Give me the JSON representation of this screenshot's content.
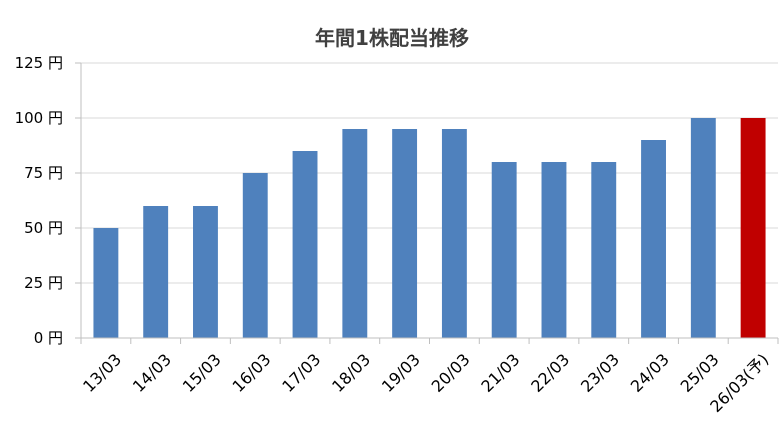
{
  "chart_data": {
    "type": "bar",
    "title": "年間1株配当推移",
    "xlabel": "",
    "ylabel": "",
    "categories": [
      "13/03",
      "14/03",
      "15/03",
      "16/03",
      "17/03",
      "18/03",
      "19/03",
      "20/03",
      "21/03",
      "22/03",
      "23/03",
      "24/03",
      "25/03",
      "26/03(予)"
    ],
    "values": [
      50,
      60,
      60,
      75,
      85,
      95,
      95,
      95,
      80,
      80,
      80,
      90,
      100,
      100
    ],
    "forecast": [
      false,
      false,
      false,
      false,
      false,
      false,
      false,
      false,
      false,
      false,
      false,
      false,
      false,
      true
    ],
    "ylim": [
      0,
      125
    ],
    "yticks": [
      0,
      25,
      50,
      75,
      100,
      125
    ],
    "ytick_unit": "円",
    "grid": true,
    "legend": "none",
    "colors": {
      "actual": "#4f81bd",
      "forecast": "#c00000"
    }
  }
}
